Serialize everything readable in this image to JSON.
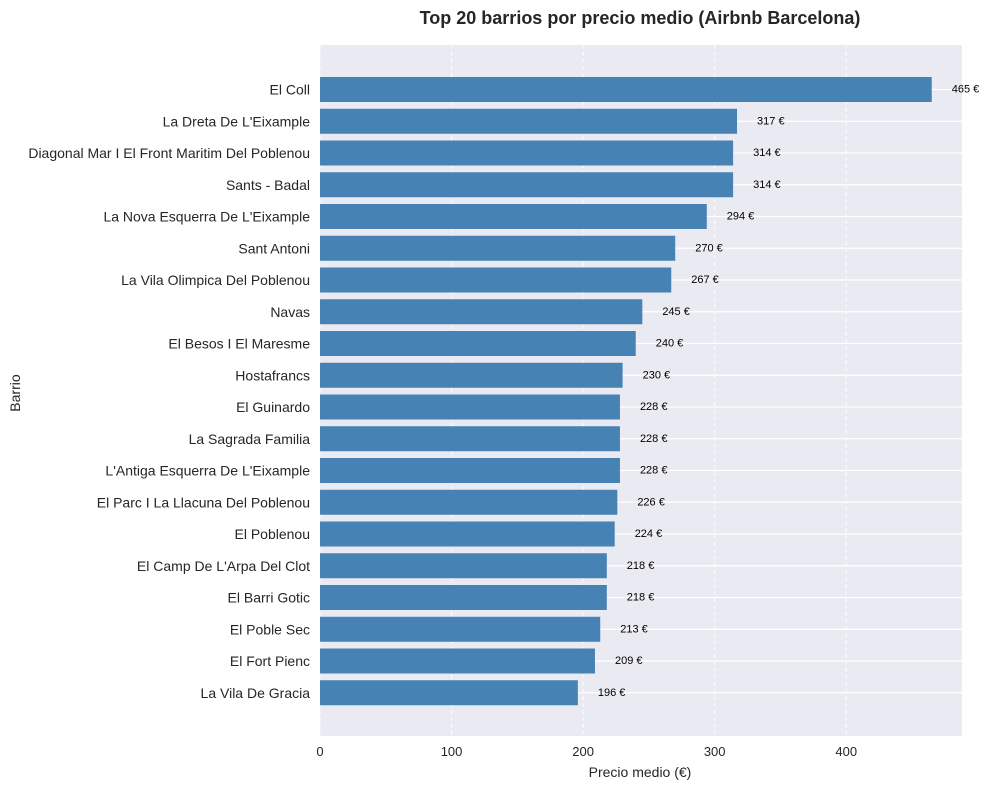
{
  "chart_data": {
    "type": "bar",
    "orientation": "horizontal",
    "title": "Top 20 barrios por precio medio (Airbnb Barcelona)",
    "xlabel": "Precio medio (€)",
    "ylabel": "Barrio",
    "xlim": [
      0,
      488
    ],
    "xticks": [
      0,
      100,
      200,
      300,
      400
    ],
    "grid": true,
    "value_suffix": " €",
    "categories": [
      "El Coll",
      "La Dreta De L'Eixample",
      "Diagonal Mar I El Front Maritim Del Poblenou",
      "Sants - Badal",
      "La Nova Esquerra De L'Eixample",
      "Sant Antoni",
      "La Vila Olimpica Del Poblenou",
      "Navas",
      "El Besos I El Maresme",
      "Hostafrancs",
      "El Guinardo",
      "La Sagrada Familia",
      "L'Antiga Esquerra De L'Eixample",
      "El Parc I La Llacuna Del Poblenou",
      "El Poblenou",
      "El Camp De L'Arpa Del Clot",
      "El Barri Gotic",
      "El Poble Sec",
      "El Fort Pienc",
      "La Vila De Gracia"
    ],
    "values": [
      465,
      317,
      314,
      314,
      294,
      270,
      267,
      245,
      240,
      230,
      228,
      228,
      228,
      226,
      224,
      218,
      218,
      213,
      209,
      196
    ],
    "bar_color": "#4682b4",
    "background_color": "#eaeaf2",
    "grid_color": "#ffffff"
  }
}
